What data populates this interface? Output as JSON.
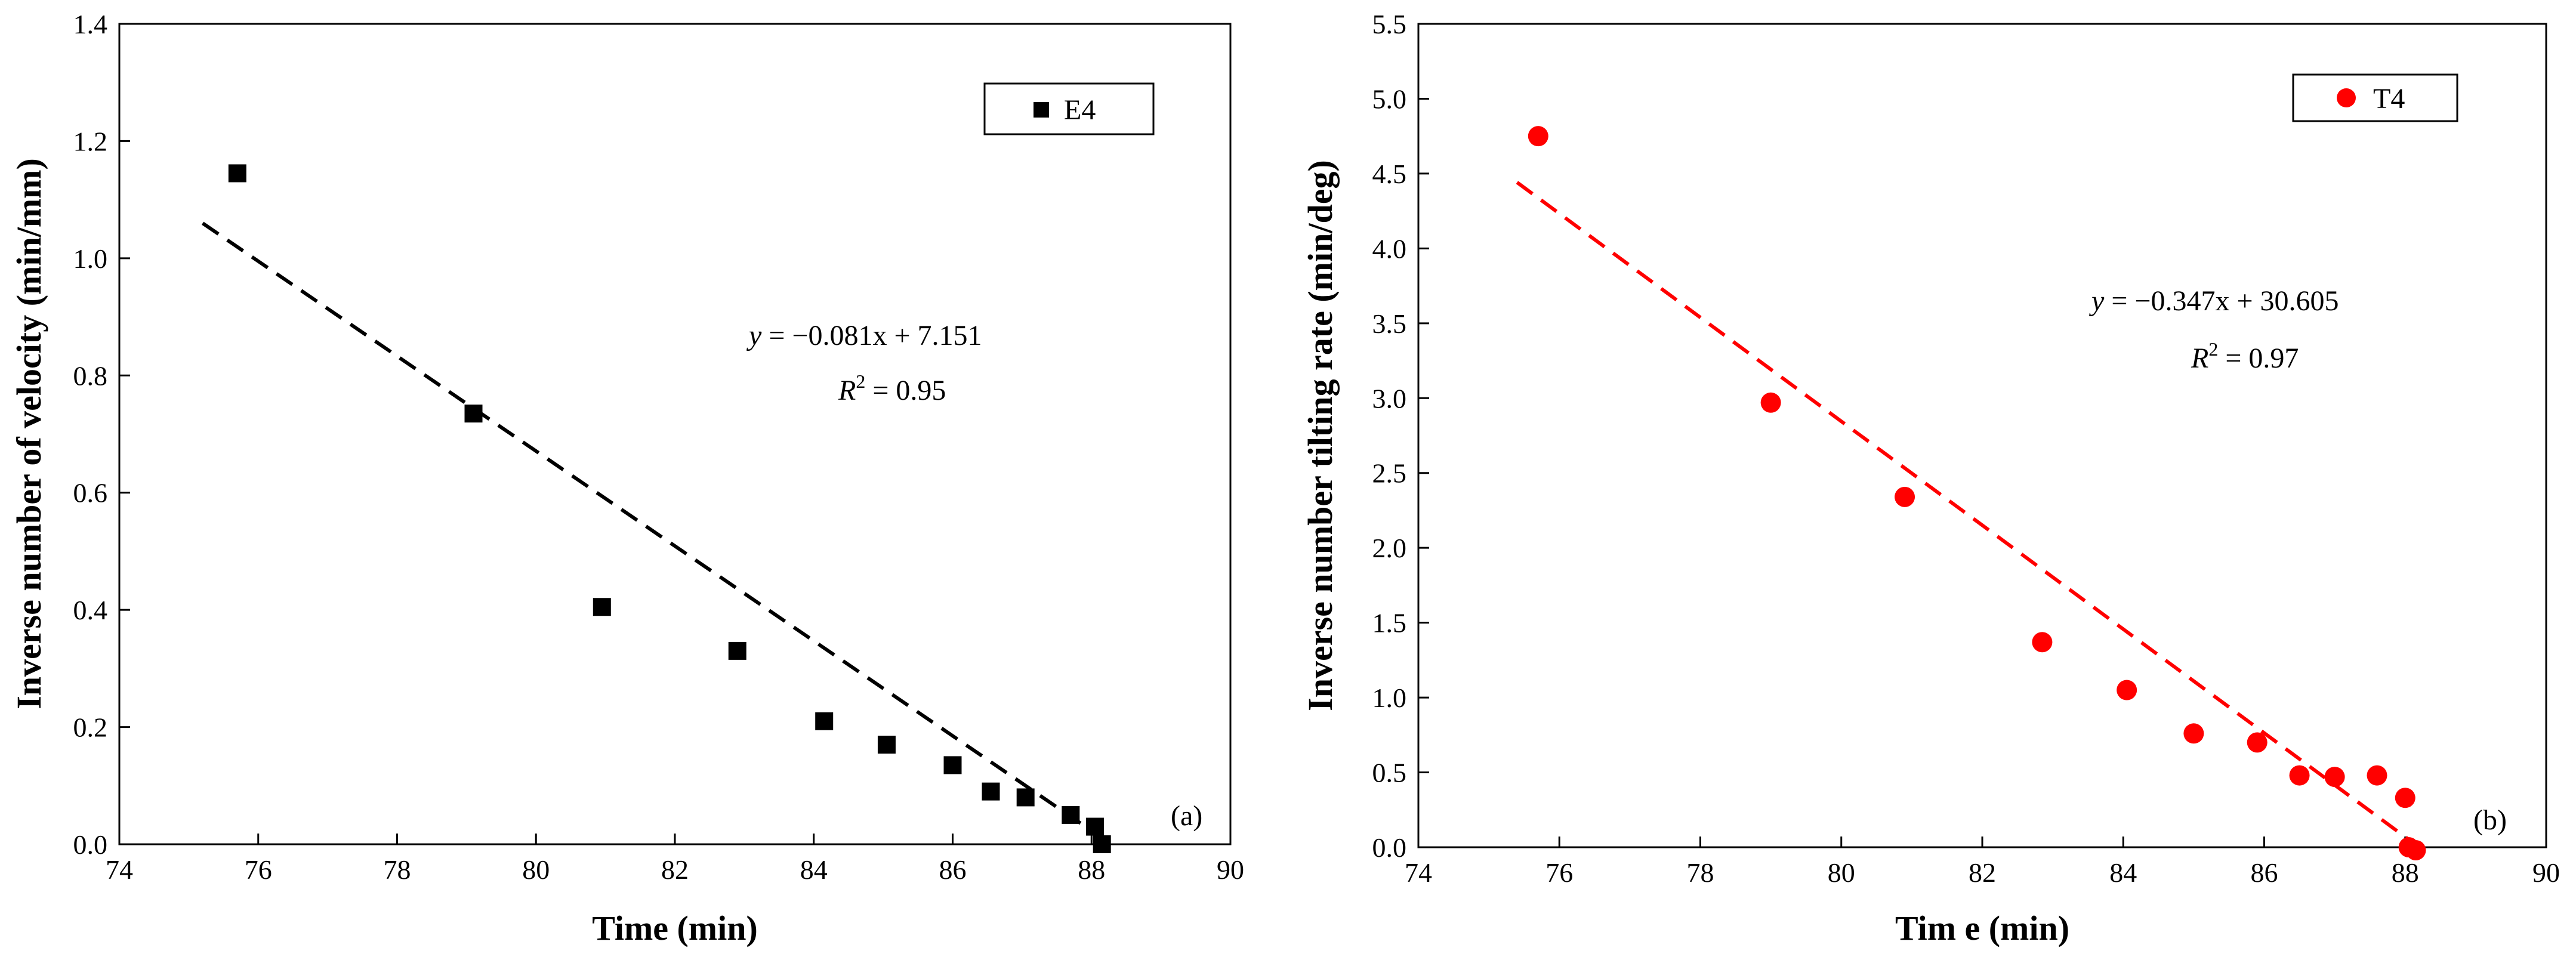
{
  "chart_data": [
    {
      "type": "scatter",
      "panel_label": "(a)",
      "xlabel": "Time (min)",
      "ylabel": "Inverse number of velocity (min/mm)",
      "xlim": [
        74,
        90
      ],
      "ylim": [
        0.0,
        1.4
      ],
      "xticks": [
        "74",
        "76",
        "78",
        "80",
        "82",
        "84",
        "86",
        "88",
        "90"
      ],
      "yticks": [
        "0.0",
        "0.2",
        "0.4",
        "0.6",
        "0.8",
        "1.0",
        "1.2",
        "1.4"
      ],
      "legend": {
        "label": "E4",
        "position": "top-right"
      },
      "marker": "square",
      "color": "#000000",
      "series": [
        {
          "name": "E4",
          "x": [
            75.7,
            79.1,
            80.95,
            82.9,
            84.15,
            85.05,
            86.0,
            86.55,
            87.05,
            87.7,
            88.05,
            88.15
          ],
          "y": [
            1.145,
            0.735,
            0.405,
            0.33,
            0.21,
            0.17,
            0.135,
            0.09,
            0.08,
            0.05,
            0.03,
            0.0
          ]
        }
      ],
      "fit": {
        "slope": -0.081,
        "intercept": 7.151,
        "x_range": [
          75.2,
          88.3
        ],
        "style": "dashed",
        "color": "#000000",
        "equation_y": "y",
        "equation_rhs": " = −0.081x + 7.151",
        "r2_label": "R",
        "r2_value": " = 0.95"
      }
    },
    {
      "type": "scatter",
      "panel_label": "(b)",
      "xlabel": "Tim e (min)",
      "ylabel": "Inverse number tilting rate (min/deg)",
      "xlim": [
        74,
        90
      ],
      "ylim": [
        0.0,
        5.5
      ],
      "xticks": [
        "74",
        "76",
        "78",
        "80",
        "82",
        "84",
        "86",
        "88",
        "90"
      ],
      "yticks": [
        "0.0",
        "0.5",
        "1.0",
        "1.5",
        "2.0",
        "2.5",
        "3.0",
        "3.5",
        "4.0",
        "4.5",
        "5.0",
        "5.5"
      ],
      "legend": {
        "label": "T4",
        "position": "top-right"
      },
      "marker": "circle",
      "color": "#ff0000",
      "series": [
        {
          "name": "T4",
          "x": [
            75.7,
            79.0,
            80.9,
            82.85,
            84.05,
            85.0,
            85.9,
            86.5,
            87.0,
            87.6,
            88.0,
            88.05,
            88.15
          ],
          "y": [
            4.75,
            2.97,
            2.34,
            1.37,
            1.05,
            0.76,
            0.7,
            0.48,
            0.47,
            0.48,
            0.33,
            0.0,
            -0.02
          ]
        }
      ],
      "fit": {
        "slope": -0.347,
        "intercept": 30.605,
        "x_range": [
          75.4,
          88.2
        ],
        "style": "dashed",
        "color": "#ff0000",
        "equation_y": "y",
        "equation_rhs": " = −0.347x + 30.605",
        "r2_label": "R",
        "r2_value": " = 0.97"
      }
    }
  ]
}
